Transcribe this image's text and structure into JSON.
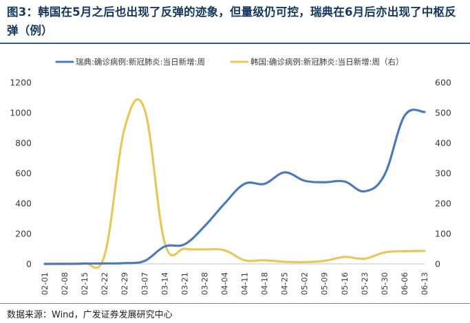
{
  "figure": {
    "title": "图3：韩国在5月之后也出现了反弹的迹象，但量级仍可控，瑞典在6月后亦出现了中枢反弹（例）",
    "source": "数据来源：Wind，广发证券发展研究中心"
  },
  "chart_data": {
    "type": "line",
    "categories": [
      "02-01",
      "02-08",
      "02-15",
      "02-22",
      "02-29",
      "03-07",
      "03-14",
      "03-21",
      "03-28",
      "04-04",
      "04-11",
      "04-18",
      "04-25",
      "05-02",
      "05-09",
      "05-16",
      "05-23",
      "05-30",
      "06-06",
      "06-13"
    ],
    "ylim_left": [
      0,
      1200
    ],
    "yticks_left": [
      0,
      200,
      400,
      600,
      800,
      1000,
      1200
    ],
    "ylim_right": [
      0,
      600
    ],
    "yticks_right": [
      0,
      100,
      200,
      300,
      400,
      500,
      600
    ],
    "legend_position": "top",
    "grid": false,
    "series": [
      {
        "name": "瑞典:确诊病例:新冠肺炎:当日新增:周",
        "axis": "left",
        "color": "#4e79b7",
        "values": [
          0,
          0,
          2,
          3,
          5,
          20,
          115,
          130,
          250,
          400,
          530,
          530,
          605,
          550,
          540,
          545,
          480,
          590,
          980,
          1005
        ]
      },
      {
        "name": "韩国:确诊病例:新冠肺炎:当日新增:周（右）",
        "axis": "right",
        "color": "#e5c85a",
        "values": [
          0,
          1,
          2,
          30,
          450,
          510,
          70,
          50,
          48,
          45,
          12,
          12,
          7,
          6,
          10,
          23,
          17,
          38,
          42,
          43
        ]
      }
    ]
  }
}
